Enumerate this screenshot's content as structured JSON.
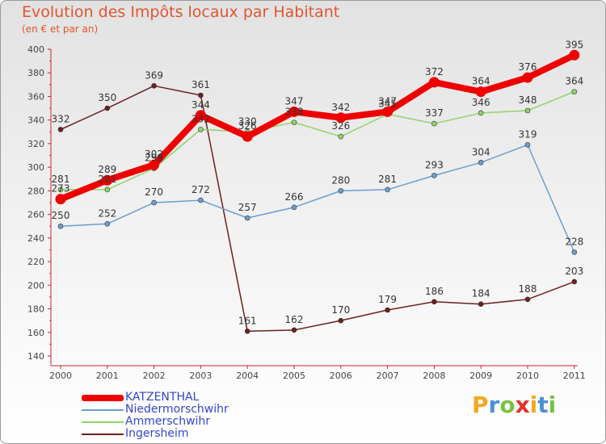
{
  "header": {
    "title": "Evolution des Impôts locaux par Habitant",
    "subtitle": "(en € et par an)"
  },
  "chart_data": {
    "type": "line",
    "title": "Evolution des Impôts locaux par Habitant",
    "subtitle": "(en € et par an)",
    "categories": [
      "2000",
      "2001",
      "2002",
      "2003",
      "2004",
      "2005",
      "2006",
      "2007",
      "2008",
      "2009",
      "2010",
      "2011"
    ],
    "ylim": [
      140,
      400
    ],
    "yticks": [
      140,
      160,
      180,
      200,
      220,
      240,
      260,
      280,
      300,
      320,
      340,
      360,
      380,
      400
    ],
    "grid": false,
    "legend_position": "bottom-left",
    "series": [
      {
        "name": "Ingersheim",
        "color": "#6e1f1f",
        "values": [
          332,
          350,
          369,
          361,
          161,
          162,
          170,
          179,
          186,
          184,
          188,
          203
        ]
      },
      {
        "name": "Ammerschwihr",
        "color": "#8fd46a",
        "values": [
          281,
          281,
          299,
          332,
          330,
          338,
          326,
          345,
          337,
          346,
          348,
          364
        ]
      },
      {
        "name": "Niedermorschwihr",
        "color": "#6a9fd0",
        "values": [
          250,
          252,
          270,
          272,
          257,
          266,
          280,
          281,
          293,
          304,
          319,
          228
        ]
      },
      {
        "name": "KATZENTHAL",
        "color": "#ee0000",
        "values": [
          273,
          289,
          302,
          344,
          326,
          347,
          342,
          347,
          372,
          364,
          376,
          395
        ]
      }
    ],
    "legend": [
      "KATZENTHAL",
      "Niedermorschwihr",
      "Ammerschwihr",
      "Ingersheim"
    ]
  },
  "logo": {
    "letters": [
      "P",
      "r",
      "o",
      "x",
      "i",
      "t",
      "i"
    ],
    "colors": [
      "#f5a623",
      "#4a90d9",
      "#7ac142",
      "#e2342a",
      "#f5a623",
      "#4a90d9",
      "#7ac142"
    ]
  }
}
